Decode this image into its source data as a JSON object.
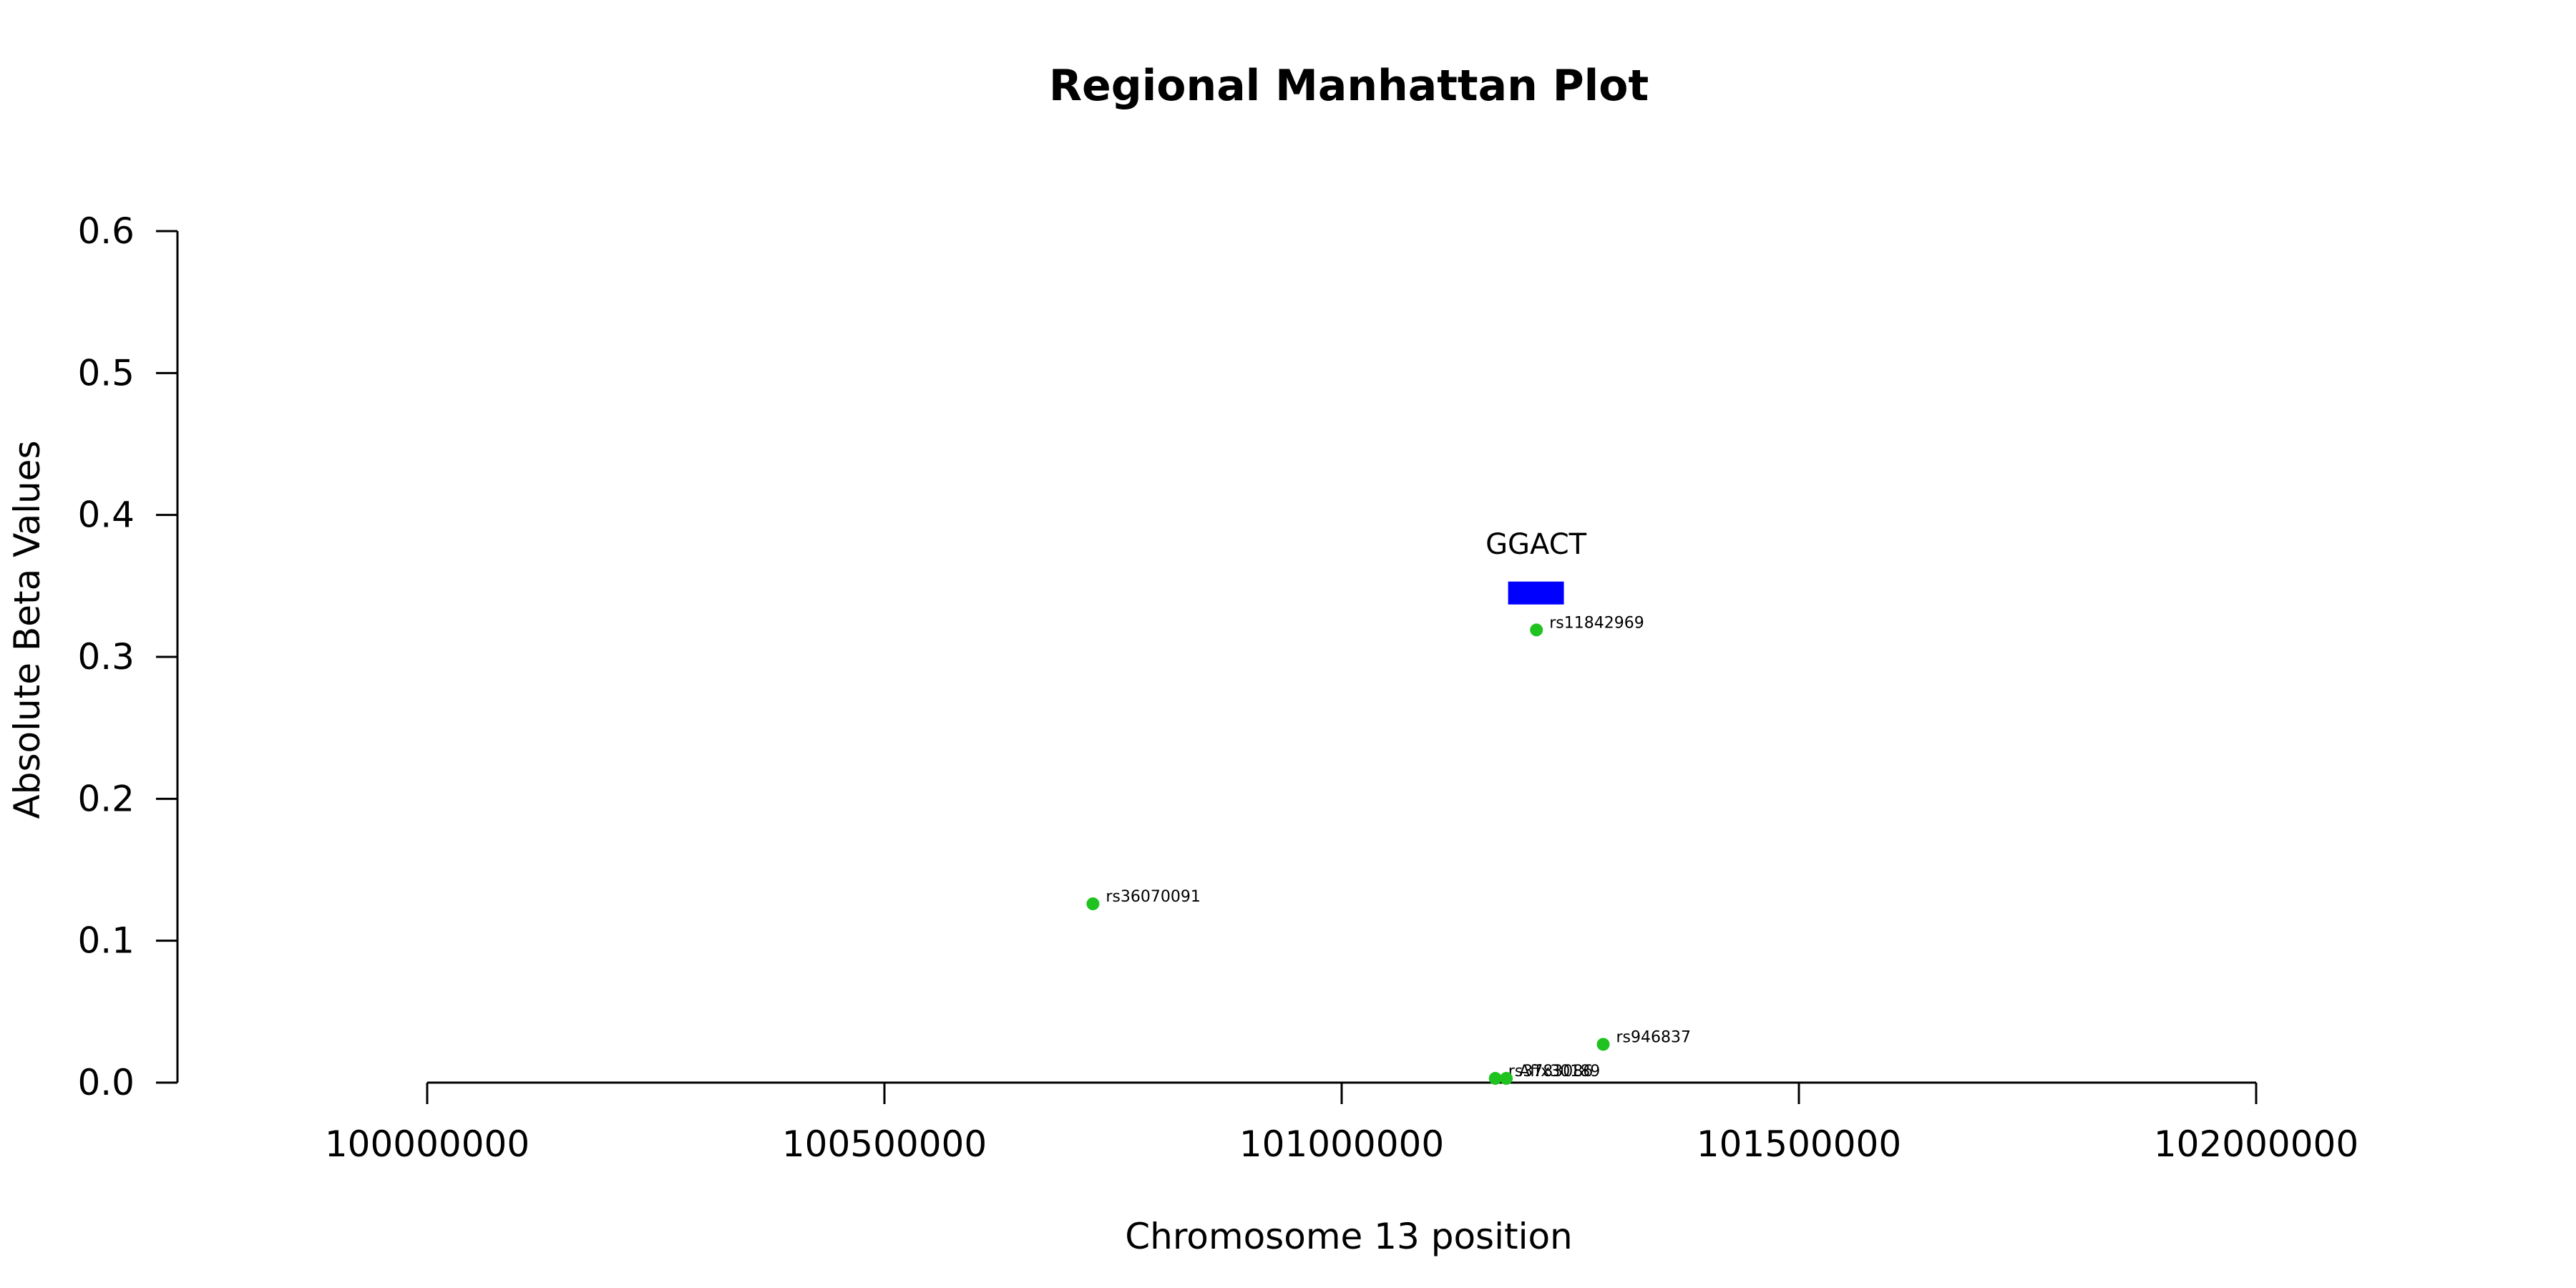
{
  "chart_data": {
    "type": "scatter",
    "title": "Regional Manhattan Plot",
    "xlabel": "Chromosome 13 position",
    "ylabel": "Absolute Beta Values",
    "xlim": [
      100000000,
      102000000
    ],
    "ylim": [
      0,
      0.6
    ],
    "x_ticks": [
      100000000,
      100500000,
      101000000,
      101500000,
      102000000
    ],
    "x_tick_labels": [
      "100000000",
      "100500000",
      "101000000",
      "101500000",
      "102000000"
    ],
    "y_ticks": [
      0.0,
      0.1,
      0.2,
      0.3,
      0.4,
      0.5,
      0.6
    ],
    "y_tick_labels": [
      "0.0",
      "0.1",
      "0.2",
      "0.3",
      "0.4",
      "0.5",
      "0.6"
    ],
    "grid": false,
    "point_color": "#1fc21f",
    "points": [
      {
        "label": "rs11842969",
        "x": 101213000,
        "y": 0.319
      },
      {
        "label": "rs36070091",
        "x": 100728000,
        "y": 0.126
      },
      {
        "label": "rs946837",
        "x": 101286000,
        "y": 0.027
      },
      {
        "label": "rs3783086",
        "x": 101168000,
        "y": 0.003
      },
      {
        "label": "Affx30189",
        "x": 101180000,
        "y": 0.003
      }
    ],
    "genes": [
      {
        "name": "GGACT",
        "start": 101182000,
        "end": 101243000,
        "y": 0.345,
        "color": "#0000ff"
      }
    ]
  }
}
